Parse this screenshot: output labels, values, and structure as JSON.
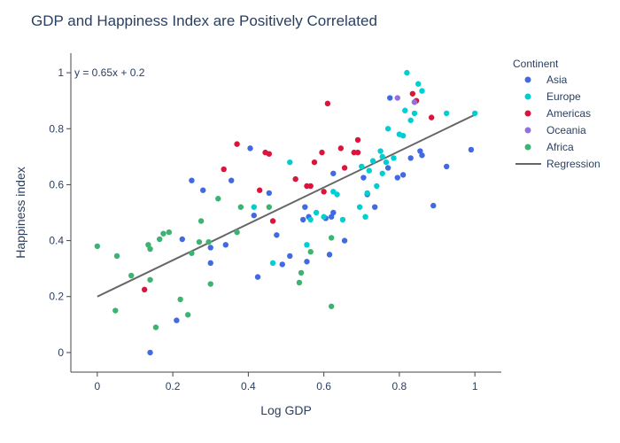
{
  "chart_data": {
    "type": "scatter",
    "title": "GDP and Happiness Index are Positively Correlated",
    "xlabel": "Log GDP",
    "ylabel": "Happiness index",
    "xlim": [
      -0.07,
      1.07
    ],
    "ylim": [
      -0.07,
      1.07
    ],
    "x_ticks": [
      0,
      0.2,
      0.4,
      0.6,
      0.8,
      1
    ],
    "x_tick_labels": [
      "0",
      "0.2",
      "0.4",
      "0.6",
      "0.8",
      "1"
    ],
    "y_ticks": [
      0,
      0.2,
      0.4,
      0.6,
      0.8,
      1
    ],
    "y_tick_labels": [
      "0",
      "0.2",
      "0.4",
      "0.6",
      "0.8",
      "1"
    ],
    "grid": false,
    "legend_title": "Continent",
    "legend_placement": "top-right",
    "annotation": "y = 0.65x + 0.2",
    "series": [
      {
        "name": "Asia",
        "color": "#4169e1",
        "points": [
          [
            0.14,
            0.0
          ],
          [
            0.21,
            0.115
          ],
          [
            0.225,
            0.405
          ],
          [
            0.25,
            0.615
          ],
          [
            0.28,
            0.58
          ],
          [
            0.3,
            0.32
          ],
          [
            0.3,
            0.375
          ],
          [
            0.34,
            0.385
          ],
          [
            0.355,
            0.615
          ],
          [
            0.405,
            0.73
          ],
          [
            0.415,
            0.49
          ],
          [
            0.425,
            0.27
          ],
          [
            0.455,
            0.57
          ],
          [
            0.475,
            0.42
          ],
          [
            0.49,
            0.315
          ],
          [
            0.51,
            0.345
          ],
          [
            0.545,
            0.475
          ],
          [
            0.55,
            0.52
          ],
          [
            0.555,
            0.325
          ],
          [
            0.56,
            0.485
          ],
          [
            0.605,
            0.48
          ],
          [
            0.615,
            0.35
          ],
          [
            0.62,
            0.485
          ],
          [
            0.625,
            0.5
          ],
          [
            0.625,
            0.64
          ],
          [
            0.655,
            0.4
          ],
          [
            0.705,
            0.625
          ],
          [
            0.715,
            0.565
          ],
          [
            0.735,
            0.52
          ],
          [
            0.77,
            0.66
          ],
          [
            0.775,
            0.91
          ],
          [
            0.795,
            0.625
          ],
          [
            0.81,
            0.635
          ],
          [
            0.83,
            0.695
          ],
          [
            0.84,
            0.895
          ],
          [
            0.855,
            0.72
          ],
          [
            0.86,
            0.705
          ],
          [
            0.89,
            0.525
          ],
          [
            0.925,
            0.665
          ],
          [
            0.99,
            0.725
          ]
        ]
      },
      {
        "name": "Europe",
        "color": "#00ced1",
        "points": [
          [
            0.415,
            0.52
          ],
          [
            0.465,
            0.32
          ],
          [
            0.51,
            0.68
          ],
          [
            0.555,
            0.385
          ],
          [
            0.565,
            0.475
          ],
          [
            0.58,
            0.5
          ],
          [
            0.6,
            0.485
          ],
          [
            0.625,
            0.575
          ],
          [
            0.635,
            0.565
          ],
          [
            0.65,
            0.475
          ],
          [
            0.695,
            0.52
          ],
          [
            0.7,
            0.665
          ],
          [
            0.71,
            0.485
          ],
          [
            0.715,
            0.57
          ],
          [
            0.72,
            0.65
          ],
          [
            0.73,
            0.685
          ],
          [
            0.74,
            0.595
          ],
          [
            0.75,
            0.72
          ],
          [
            0.755,
            0.64
          ],
          [
            0.755,
            0.7
          ],
          [
            0.765,
            0.68
          ],
          [
            0.77,
            0.8
          ],
          [
            0.785,
            0.695
          ],
          [
            0.8,
            0.78
          ],
          [
            0.81,
            0.775
          ],
          [
            0.815,
            0.865
          ],
          [
            0.82,
            1.0
          ],
          [
            0.83,
            0.83
          ],
          [
            0.84,
            0.855
          ],
          [
            0.85,
            0.96
          ],
          [
            0.86,
            0.935
          ],
          [
            0.925,
            0.855
          ],
          [
            1.0,
            0.855
          ]
        ]
      },
      {
        "name": "Americas",
        "color": "#dc143c",
        "points": [
          [
            0.125,
            0.225
          ],
          [
            0.335,
            0.655
          ],
          [
            0.37,
            0.745
          ],
          [
            0.43,
            0.58
          ],
          [
            0.445,
            0.715
          ],
          [
            0.455,
            0.71
          ],
          [
            0.465,
            0.47
          ],
          [
            0.525,
            0.62
          ],
          [
            0.555,
            0.595
          ],
          [
            0.565,
            0.595
          ],
          [
            0.575,
            0.68
          ],
          [
            0.595,
            0.715
          ],
          [
            0.6,
            0.575
          ],
          [
            0.61,
            0.89
          ],
          [
            0.645,
            0.73
          ],
          [
            0.655,
            0.66
          ],
          [
            0.68,
            0.715
          ],
          [
            0.69,
            0.76
          ],
          [
            0.69,
            0.715
          ],
          [
            0.835,
            0.925
          ],
          [
            0.845,
            0.9
          ],
          [
            0.885,
            0.84
          ]
        ]
      },
      {
        "name": "Oceania",
        "color": "#9370db",
        "points": [
          [
            0.795,
            0.91
          ],
          [
            0.84,
            0.895
          ]
        ]
      },
      {
        "name": "Africa",
        "color": "#3cb371",
        "points": [
          [
            0.0,
            0.38
          ],
          [
            0.048,
            0.15
          ],
          [
            0.052,
            0.345
          ],
          [
            0.09,
            0.275
          ],
          [
            0.135,
            0.385
          ],
          [
            0.14,
            0.37
          ],
          [
            0.14,
            0.26
          ],
          [
            0.155,
            0.09
          ],
          [
            0.165,
            0.405
          ],
          [
            0.175,
            0.425
          ],
          [
            0.19,
            0.43
          ],
          [
            0.22,
            0.19
          ],
          [
            0.24,
            0.135
          ],
          [
            0.25,
            0.355
          ],
          [
            0.27,
            0.395
          ],
          [
            0.275,
            0.47
          ],
          [
            0.295,
            0.395
          ],
          [
            0.3,
            0.245
          ],
          [
            0.32,
            0.55
          ],
          [
            0.37,
            0.43
          ],
          [
            0.38,
            0.52
          ],
          [
            0.455,
            0.52
          ],
          [
            0.535,
            0.25
          ],
          [
            0.54,
            0.285
          ],
          [
            0.565,
            0.36
          ],
          [
            0.62,
            0.165
          ],
          [
            0.62,
            0.41
          ]
        ]
      }
    ],
    "regression": {
      "name": "Regression",
      "color": "#666666",
      "slope": 0.65,
      "intercept": 0.2,
      "x_range": [
        0,
        1
      ]
    }
  }
}
